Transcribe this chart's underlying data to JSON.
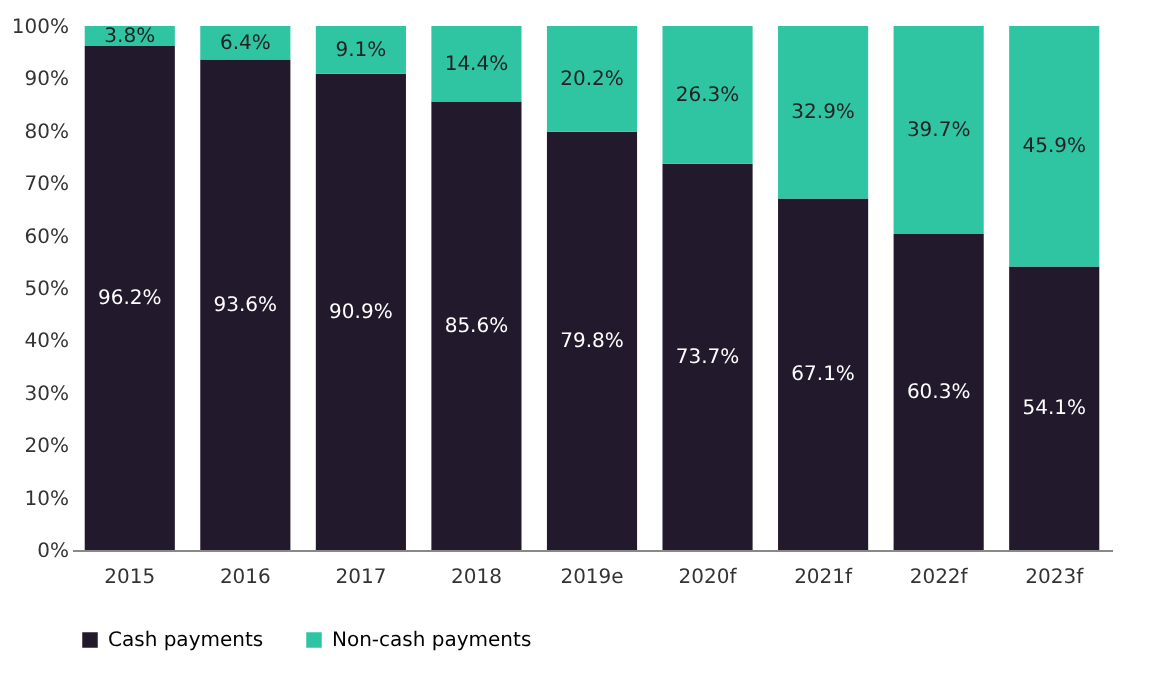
{
  "chart_data": {
    "type": "bar",
    "stacked": true,
    "categories": [
      "2015",
      "2016",
      "2017",
      "2018",
      "2019e",
      "2020f",
      "2021f",
      "2022f",
      "2023f"
    ],
    "series": [
      {
        "name": "Cash payments",
        "color": "#221a2c",
        "values": [
          96.2,
          93.6,
          90.9,
          85.6,
          79.8,
          73.7,
          67.1,
          60.3,
          54.1
        ],
        "value_labels": [
          "96.2%",
          "93.6%",
          "90.9%",
          "85.6%",
          "79.8%",
          "73.7%",
          "67.1%",
          "60.3%",
          "54.1%"
        ]
      },
      {
        "name": "Non-cash payments",
        "color": "#2fc4a2",
        "values": [
          3.8,
          6.4,
          9.1,
          14.4,
          20.2,
          26.3,
          32.9,
          39.7,
          45.9
        ],
        "value_labels": [
          "3.8%",
          "6.4%",
          "9.1%",
          "14.4%",
          "20.2%",
          "26.3%",
          "32.9%",
          "39.7%",
          "45.9%"
        ]
      }
    ],
    "ylim": [
      0,
      100
    ],
    "yticks": [
      {
        "value": 0,
        "label": "0%"
      },
      {
        "value": 10,
        "label": "10%"
      },
      {
        "value": 20,
        "label": "20%"
      },
      {
        "value": 30,
        "label": "30%"
      },
      {
        "value": 40,
        "label": "40%"
      },
      {
        "value": 50,
        "label": "50%"
      },
      {
        "value": 60,
        "label": "60%"
      },
      {
        "value": 70,
        "label": "70%"
      },
      {
        "value": 80,
        "label": "80%"
      },
      {
        "value": 90,
        "label": "90%"
      },
      {
        "value": 100,
        "label": "100%"
      }
    ],
    "grid": false,
    "legend": "bottom"
  }
}
